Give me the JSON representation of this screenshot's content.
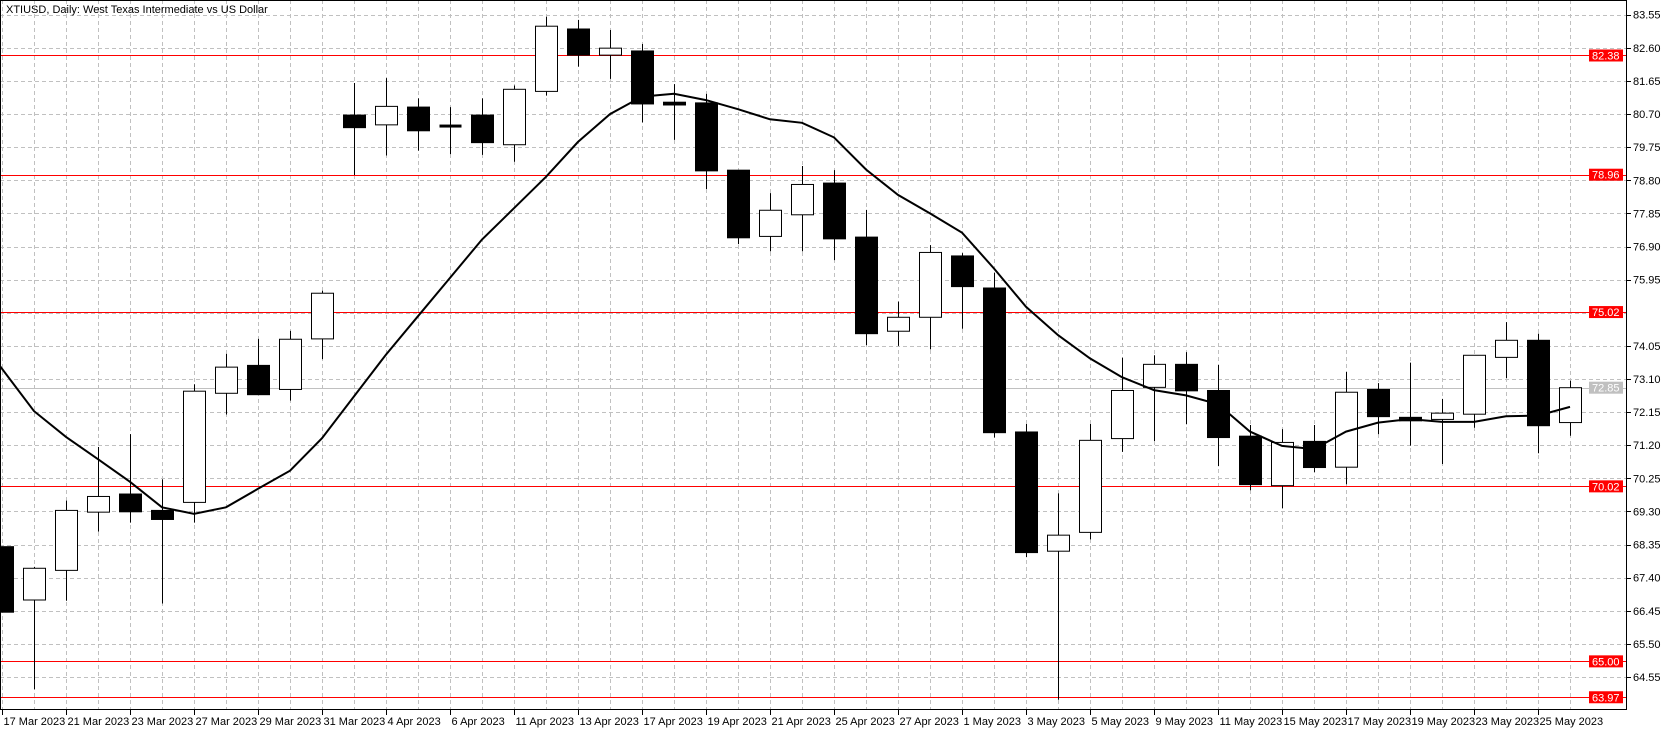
{
  "chart_data": {
    "type": "candlestick",
    "title": "XTIUSD, Daily:  West Texas Intermediate vs US Dollar",
    "ylim": [
      63.75,
      83.95
    ],
    "grid": true,
    "y_tick_labels": [
      "83.55",
      "82.60",
      "81.65",
      "80.70",
      "79.75",
      "78.80",
      "77.85",
      "76.90",
      "75.95",
      "74.05",
      "73.10",
      "72.15",
      "71.20",
      "70.25",
      "69.30",
      "68.35",
      "67.40",
      "66.45",
      "65.50",
      "64.55"
    ],
    "y_grid_step": 0.95,
    "x_tick_labels": [
      {
        "bar": 0,
        "label": "17 Mar 2023"
      },
      {
        "bar": 2,
        "label": "21 Mar 2023"
      },
      {
        "bar": 4,
        "label": "23 Mar 2023"
      },
      {
        "bar": 6,
        "label": "27 Mar 2023"
      },
      {
        "bar": 8,
        "label": "29 Mar 2023"
      },
      {
        "bar": 10,
        "label": "31 Mar 2023"
      },
      {
        "bar": 12,
        "label": "4 Apr 2023"
      },
      {
        "bar": 14,
        "label": "6 Apr 2023"
      },
      {
        "bar": 16,
        "label": "11 Apr 2023"
      },
      {
        "bar": 18,
        "label": "13 Apr 2023"
      },
      {
        "bar": 20,
        "label": "17 Apr 2023"
      },
      {
        "bar": 22,
        "label": "19 Apr 2023"
      },
      {
        "bar": 24,
        "label": "21 Apr 2023"
      },
      {
        "bar": 26,
        "label": "25 Apr 2023"
      },
      {
        "bar": 28,
        "label": "27 Apr 2023"
      },
      {
        "bar": 30,
        "label": "1 May 2023"
      },
      {
        "bar": 32,
        "label": "3 May 2023"
      },
      {
        "bar": 34,
        "label": "5 May 2023"
      },
      {
        "bar": 36,
        "label": "9 May 2023"
      },
      {
        "bar": 38,
        "label": "11 May 2023"
      },
      {
        "bar": 40,
        "label": "15 May 2023"
      },
      {
        "bar": 42,
        "label": "17 May 2023"
      },
      {
        "bar": 44,
        "label": "19 May 2023"
      },
      {
        "bar": 46,
        "label": "23 May 2023"
      },
      {
        "bar": 48,
        "label": "25 May 2023"
      }
    ],
    "candles": [
      {
        "date": "17 Mar 2023",
        "o": 68.29,
        "h": 68.29,
        "l": 66.41,
        "c": 66.41
      },
      {
        "date": "20 Mar 2023",
        "o": 66.76,
        "h": 67.71,
        "l": 64.2,
        "c": 67.67
      },
      {
        "date": "21 Mar 2023",
        "o": 67.61,
        "h": 69.61,
        "l": 66.74,
        "c": 69.33
      },
      {
        "date": "22 Mar 2023",
        "o": 69.28,
        "h": 71.15,
        "l": 68.72,
        "c": 69.73
      },
      {
        "date": "23 Mar 2023",
        "o": 69.8,
        "h": 71.52,
        "l": 68.98,
        "c": 69.29
      },
      {
        "date": "24 Mar 2023",
        "o": 69.33,
        "h": 70.22,
        "l": 66.66,
        "c": 69.07
      },
      {
        "date": "27 Mar 2023",
        "o": 69.56,
        "h": 72.95,
        "l": 68.98,
        "c": 72.75
      },
      {
        "date": "28 Mar 2023",
        "o": 72.69,
        "h": 73.82,
        "l": 72.08,
        "c": 73.44
      },
      {
        "date": "29 Mar 2023",
        "o": 73.49,
        "h": 74.25,
        "l": 72.65,
        "c": 72.65
      },
      {
        "date": "30 Mar 2023",
        "o": 72.8,
        "h": 74.48,
        "l": 72.48,
        "c": 74.24
      },
      {
        "date": "31 Mar 2023",
        "o": 74.25,
        "h": 75.63,
        "l": 73.67,
        "c": 75.56
      },
      {
        "date": "3 Apr 2023",
        "o": 80.67,
        "h": 81.59,
        "l": 78.95,
        "c": 80.31
      },
      {
        "date": "4 Apr 2023",
        "o": 80.39,
        "h": 81.73,
        "l": 79.51,
        "c": 80.92
      },
      {
        "date": "5 Apr 2023",
        "o": 80.9,
        "h": 81.15,
        "l": 79.65,
        "c": 80.22
      },
      {
        "date": "6 Apr 2023",
        "o": 80.37,
        "h": 80.9,
        "l": 79.55,
        "c": 80.37
      },
      {
        "date": "10 Apr 2023",
        "o": 80.67,
        "h": 81.15,
        "l": 79.53,
        "c": 79.88
      },
      {
        "date": "11 Apr 2023",
        "o": 79.82,
        "h": 81.52,
        "l": 79.33,
        "c": 81.41
      },
      {
        "date": "12 Apr 2023",
        "o": 81.35,
        "h": 83.49,
        "l": 81.23,
        "c": 83.22
      },
      {
        "date": "13 Apr 2023",
        "o": 83.14,
        "h": 83.4,
        "l": 82.06,
        "c": 82.39
      },
      {
        "date": "14 Apr 2023",
        "o": 82.39,
        "h": 83.11,
        "l": 81.71,
        "c": 82.59
      },
      {
        "date": "17 Apr 2023",
        "o": 82.51,
        "h": 82.71,
        "l": 80.46,
        "c": 80.99
      },
      {
        "date": "18 Apr 2023",
        "o": 81.04,
        "h": 81.56,
        "l": 79.96,
        "c": 80.96
      },
      {
        "date": "19 Apr 2023",
        "o": 81.02,
        "h": 81.28,
        "l": 78.55,
        "c": 79.07
      },
      {
        "date": "20 Apr 2023",
        "o": 79.09,
        "h": 79.09,
        "l": 76.97,
        "c": 77.15
      },
      {
        "date": "21 Apr 2023",
        "o": 77.19,
        "h": 78.43,
        "l": 76.76,
        "c": 77.94
      },
      {
        "date": "24 Apr 2023",
        "o": 77.81,
        "h": 79.21,
        "l": 76.76,
        "c": 78.68
      },
      {
        "date": "25 Apr 2023",
        "o": 78.72,
        "h": 79.09,
        "l": 76.51,
        "c": 77.12
      },
      {
        "date": "26 Apr 2023",
        "o": 77.17,
        "h": 77.95,
        "l": 74.07,
        "c": 74.4
      },
      {
        "date": "27 Apr 2023",
        "o": 74.47,
        "h": 75.32,
        "l": 74.05,
        "c": 74.87
      },
      {
        "date": "28 Apr 2023",
        "o": 74.87,
        "h": 76.94,
        "l": 73.95,
        "c": 76.73
      },
      {
        "date": "1 May 2023",
        "o": 76.63,
        "h": 76.71,
        "l": 74.54,
        "c": 75.75
      },
      {
        "date": "2 May 2023",
        "o": 75.71,
        "h": 76.15,
        "l": 71.42,
        "c": 71.56
      },
      {
        "date": "3 May 2023",
        "o": 71.58,
        "h": 71.81,
        "l": 67.99,
        "c": 68.12
      },
      {
        "date": "4 May 2023",
        "o": 68.16,
        "h": 69.82,
        "l": 63.9,
        "c": 68.62
      },
      {
        "date": "5 May 2023",
        "o": 68.7,
        "h": 71.81,
        "l": 68.5,
        "c": 71.34
      },
      {
        "date": "8 May 2023",
        "o": 71.39,
        "h": 73.71,
        "l": 71.01,
        "c": 72.77
      },
      {
        "date": "9 May 2023",
        "o": 72.86,
        "h": 73.78,
        "l": 71.32,
        "c": 73.52
      },
      {
        "date": "10 May 2023",
        "o": 73.52,
        "h": 73.87,
        "l": 71.8,
        "c": 72.76
      },
      {
        "date": "11 May 2023",
        "o": 72.77,
        "h": 73.5,
        "l": 70.6,
        "c": 71.42
      },
      {
        "date": "12 May 2023",
        "o": 71.46,
        "h": 71.78,
        "l": 69.91,
        "c": 70.07
      },
      {
        "date": "15 May 2023",
        "o": 70.04,
        "h": 71.66,
        "l": 69.39,
        "c": 71.28
      },
      {
        "date": "16 May 2023",
        "o": 71.31,
        "h": 71.78,
        "l": 70.43,
        "c": 70.56
      },
      {
        "date": "17 May 2023",
        "o": 70.57,
        "h": 73.3,
        "l": 70.08,
        "c": 72.72
      },
      {
        "date": "18 May 2023",
        "o": 72.8,
        "h": 72.98,
        "l": 71.52,
        "c": 72.02
      },
      {
        "date": "19 May 2023",
        "o": 72.0,
        "h": 73.57,
        "l": 71.19,
        "c": 71.9
      },
      {
        "date": "22 May 2023",
        "o": 71.94,
        "h": 72.53,
        "l": 70.66,
        "c": 72.12
      },
      {
        "date": "23 May 2023",
        "o": 72.09,
        "h": 73.78,
        "l": 71.7,
        "c": 73.78
      },
      {
        "date": "24 May 2023",
        "o": 73.72,
        "h": 74.73,
        "l": 73.13,
        "c": 74.21
      },
      {
        "date": "25 May 2023",
        "o": 74.21,
        "h": 74.4,
        "l": 70.97,
        "c": 71.76
      },
      {
        "date": "26 May 2023",
        "o": 71.85,
        "h": 73.05,
        "l": 71.47,
        "c": 72.85
      }
    ],
    "moving_average": [
      73.47,
      72.18,
      71.44,
      70.8,
      70.15,
      69.42,
      69.23,
      69.42,
      69.95,
      70.47,
      71.4,
      72.6,
      73.8,
      74.9,
      76.0,
      77.1,
      78.0,
      78.9,
      79.9,
      80.7,
      81.2,
      81.28,
      81.1,
      80.84,
      80.55,
      80.45,
      80.03,
      79.11,
      78.38,
      77.85,
      77.3,
      76.27,
      75.17,
      74.36,
      73.69,
      73.15,
      72.78,
      72.63,
      72.38,
      71.59,
      71.18,
      71.09,
      71.59,
      71.85,
      71.95,
      71.87,
      71.87,
      72.03,
      72.05,
      72.3
    ],
    "horizontal_levels": [
      "82.38",
      "78.96",
      "75.02",
      "70.02",
      "65.00",
      "63.97"
    ],
    "current_price": "72.85",
    "colors": {
      "level_line": "#ff0000",
      "level_label_bg": "#ff0000",
      "current_price_line": "#c0c0c0",
      "current_price_label_bg": "#c0c0c0",
      "bull_body": "#ffffff",
      "bear_body": "#000000",
      "grid": "#c0c0c0",
      "moving_average": "#000000"
    }
  }
}
